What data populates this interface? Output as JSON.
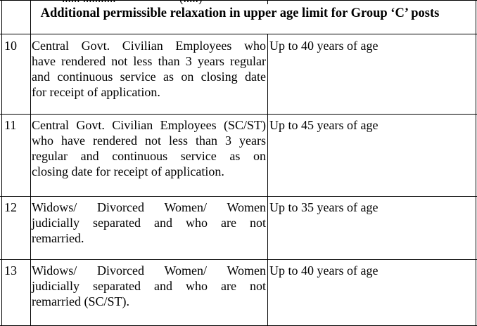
{
  "table": {
    "cropped_top_text": [
      "...... ...........",
      "(.....)"
    ],
    "header": "Additional permissible relaxation in upper age limit for Group ‘C’ posts",
    "rows": [
      {
        "sno": "10",
        "description_lines": [
          "Central Govt. Civilian Employees who",
          "have rendered not less than 3 years regular",
          "and continuous service as on closing date",
          "for receipt of application."
        ],
        "relaxation": "Up to 40 years of age"
      },
      {
        "sno": "11",
        "description_lines": [
          "Central Govt. Civilian Employees (SC/ST)",
          "who have rendered not less than 3 years",
          "regular and continuous service as on",
          "closing date for receipt of application."
        ],
        "relaxation": "Up to 45 years of age"
      },
      {
        "sno": "12",
        "description_lines": [
          "Widows/ Divorced Women/ Women",
          "judicially separated and who are not",
          "remarried."
        ],
        "relaxation": "Up to 35 years of age"
      },
      {
        "sno": "13",
        "description_lines": [
          "Widows/ Divorced Women/ Women",
          "judicially separated and who are not",
          "remarried (SC/ST)."
        ],
        "relaxation": "Up to 40 years of age"
      }
    ]
  }
}
